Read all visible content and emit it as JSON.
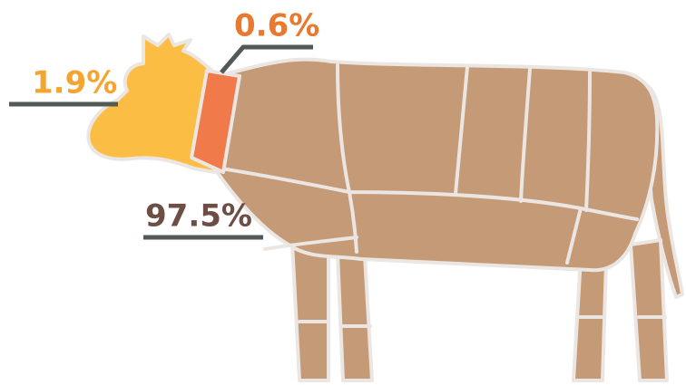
{
  "annotations": {
    "head": "1.9%",
    "neck": "0.6%",
    "body": "97.5%"
  }
}
